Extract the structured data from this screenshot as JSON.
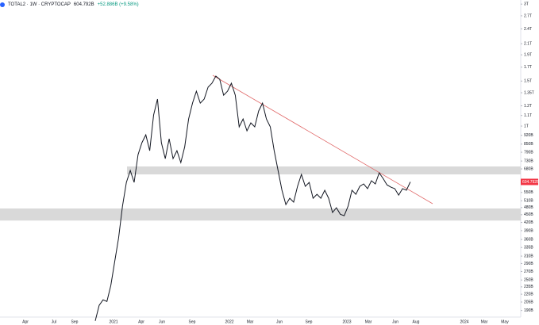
{
  "header": {
    "symbol": "TOTAL2 · 1W · CRYPTOCAP",
    "last_label": "604.792B",
    "change_label": "+52.886B (+9.58%)"
  },
  "chart_data": {
    "type": "line",
    "log_scale": true,
    "color": "#131722",
    "values": [
      173,
      199,
      209,
      206,
      238,
      295,
      365,
      486,
      602,
      670,
      602,
      773,
      861,
      924,
      801,
      1105,
      1275,
      861,
      746,
      892,
      746,
      801,
      720,
      830,
      1066,
      1230,
      1369,
      1230,
      1275,
      1419,
      1471,
      1568,
      1524,
      1321,
      1369,
      1471,
      1321,
      993,
      1066,
      958,
      1029,
      993,
      1145,
      1230,
      1066,
      993,
      801,
      670,
      561,
      493,
      522,
      504,
      581,
      647,
      581,
      602,
      522,
      541,
      522,
      561,
      522,
      459,
      479,
      452,
      446,
      486,
      561,
      541,
      581,
      594,
      569,
      611,
      594,
      656,
      624,
      589,
      577,
      569,
      537,
      569,
      561,
      604.792
    ],
    "ylim": [
      179,
      3113
    ],
    "yticks": [
      {
        "value": 3000,
        "label": "3T"
      },
      {
        "value": 2700,
        "label": "2.7T"
      },
      {
        "value": 2400,
        "label": "2.4T"
      },
      {
        "value": 2100,
        "label": "2.1T"
      },
      {
        "value": 1900,
        "label": "1.9T"
      },
      {
        "value": 1700,
        "label": "1.7T"
      },
      {
        "value": 1500,
        "label": "1.5T"
      },
      {
        "value": 1350,
        "label": "1.35T"
      },
      {
        "value": 1200,
        "label": "1.2T"
      },
      {
        "value": 1100,
        "label": "1.1T"
      },
      {
        "value": 1000,
        "label": "1T"
      },
      {
        "value": 920,
        "label": "920B"
      },
      {
        "value": 850,
        "label": "850B"
      },
      {
        "value": 790,
        "label": "790B"
      },
      {
        "value": 730,
        "label": "730B"
      },
      {
        "value": 680,
        "label": "680B"
      },
      {
        "value": 550,
        "label": "550B"
      },
      {
        "value": 510,
        "label": "510B"
      },
      {
        "value": 480,
        "label": "480B"
      },
      {
        "value": 450,
        "label": "450B"
      },
      {
        "value": 420,
        "label": "420B"
      },
      {
        "value": 390,
        "label": "390B"
      },
      {
        "value": 360,
        "label": "360B"
      },
      {
        "value": 335,
        "label": "335B"
      },
      {
        "value": 310,
        "label": "310B"
      },
      {
        "value": 290,
        "label": "290B"
      },
      {
        "value": 270,
        "label": "270B"
      },
      {
        "value": 250,
        "label": "250B"
      },
      {
        "value": 235,
        "label": "235B"
      },
      {
        "value": 220,
        "label": "220B"
      },
      {
        "value": 205,
        "label": "205B"
      },
      {
        "value": 190,
        "label": "190B"
      }
    ],
    "xticks": [
      "Apr",
      "Jul",
      "Sep",
      "2021",
      "Apr",
      "Jun",
      "Sep",
      "2022",
      "Mar",
      "Jun",
      "Sep",
      "2023",
      "Mar",
      "Jun",
      "Aug",
      "2024",
      "Mar",
      "May"
    ],
    "trendline": {
      "color": "#e06666",
      "start": 1580,
      "end": 497
    },
    "zones": [
      {
        "low": 647,
        "high": 695,
        "color": "#d9d9d9"
      },
      {
        "low": 427,
        "high": 476,
        "color": "#d9d9d9"
      }
    ],
    "last_color": "#f23645"
  }
}
